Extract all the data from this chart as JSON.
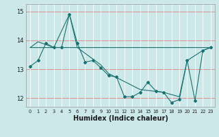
{
  "xlabel": "Humidex (Indice chaleur)",
  "bg_color": "#cce8e8",
  "line_color": "#1a7070",
  "grid_color_h": "#f0a0a0",
  "grid_color_v": "#ffffff",
  "xlim": [
    -0.5,
    23.5
  ],
  "ylim": [
    11.7,
    15.25
  ],
  "yticks": [
    12,
    13,
    14,
    15
  ],
  "xticks": [
    0,
    1,
    2,
    3,
    4,
    5,
    6,
    7,
    8,
    9,
    10,
    11,
    12,
    13,
    14,
    15,
    16,
    17,
    18,
    19,
    20,
    21,
    22,
    23
  ],
  "line1_x": [
    0,
    1,
    2,
    3,
    4,
    5,
    6,
    7,
    8,
    9,
    10,
    11,
    12,
    13,
    14,
    15,
    16,
    17,
    18,
    19,
    20,
    21,
    22,
    23
  ],
  "line1_y": [
    13.1,
    13.3,
    13.9,
    13.75,
    13.75,
    14.9,
    13.9,
    13.25,
    13.3,
    13.05,
    12.78,
    12.73,
    12.05,
    12.05,
    12.2,
    12.55,
    12.25,
    12.2,
    11.85,
    11.95,
    13.3,
    11.92,
    13.65,
    13.75
  ],
  "line2_x": [
    0,
    1,
    3,
    5,
    6,
    9,
    10,
    14,
    17,
    19,
    20,
    22,
    23
  ],
  "line2_y": [
    13.75,
    13.95,
    13.75,
    14.9,
    13.75,
    13.15,
    12.85,
    12.3,
    12.2,
    12.05,
    13.3,
    13.65,
    13.75
  ],
  "line3_x": [
    0,
    23
  ],
  "line3_y": [
    13.75,
    13.75
  ]
}
